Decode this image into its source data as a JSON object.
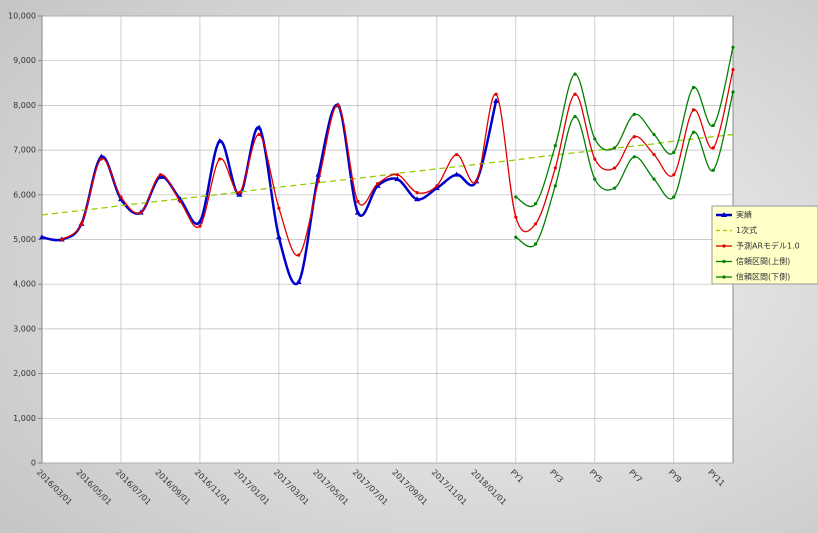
{
  "chart_data": {
    "type": "line",
    "categories": [
      "2016/03/01",
      null,
      "2016/05/01",
      null,
      "2016/07/01",
      null,
      "2016/09/01",
      null,
      "2016/11/01",
      null,
      "2017/01/01",
      null,
      "2017/03/01",
      null,
      "2017/05/01",
      null,
      "2017/07/01",
      null,
      "2017/09/01",
      null,
      "2017/11/01",
      null,
      "2018/01/01",
      null,
      "PY1",
      null,
      "PY3",
      null,
      "PY5",
      null,
      "PY7",
      null,
      "PY9",
      null,
      "PY11",
      null
    ],
    "series": [
      {
        "name": "実績",
        "color": "#0000cc",
        "marker": "triangle",
        "values": [
          5050,
          5000,
          5350,
          6850,
          5900,
          5600,
          6400,
          5900,
          5400,
          7200,
          6000,
          7500,
          5050,
          4050,
          6450,
          8000,
          5600,
          6200,
          6350,
          5900,
          6150,
          6450,
          6300,
          8100,
          null,
          null,
          null,
          null,
          null,
          null,
          null,
          null,
          null,
          null,
          null,
          null
        ]
      },
      {
        "name": "1次式",
        "color": "#99cc00",
        "dashed": true,
        "values": [
          5550,
          5600,
          5650,
          5700,
          5760,
          5810,
          5860,
          5910,
          5960,
          6010,
          6060,
          6120,
          6170,
          6220,
          6270,
          6320,
          6370,
          6420,
          6480,
          6530,
          6580,
          6630,
          6680,
          6730,
          6780,
          6840,
          6890,
          6940,
          6990,
          7040,
          7090,
          7140,
          7200,
          7250,
          7300,
          7350
        ]
      },
      {
        "name": "予測ARモデル1.0",
        "color": "#e00000",
        "marker": "dot",
        "values": [
          null,
          5000,
          5350,
          6800,
          5950,
          5600,
          6450,
          5850,
          5300,
          6800,
          6050,
          7350,
          5700,
          4650,
          6300,
          8000,
          5850,
          6250,
          6450,
          6050,
          6200,
          6900,
          6300,
          8250,
          5500,
          5350,
          6600,
          8250,
          6800,
          6600,
          7300,
          6900,
          6450,
          7900,
          7050,
          8800
        ]
      },
      {
        "name": "信頼区間(上側)",
        "color": "#008000",
        "marker": "dot",
        "values": [
          null,
          null,
          null,
          null,
          null,
          null,
          null,
          null,
          null,
          null,
          null,
          null,
          null,
          null,
          null,
          null,
          null,
          null,
          null,
          null,
          null,
          null,
          null,
          null,
          5950,
          5800,
          7100,
          8700,
          7250,
          7050,
          7800,
          7350,
          6950,
          8400,
          7550,
          9300
        ]
      },
      {
        "name": "信頼区間(下側)",
        "color": "#008000",
        "marker": "dot",
        "values": [
          null,
          null,
          null,
          null,
          null,
          null,
          null,
          null,
          null,
          null,
          null,
          null,
          null,
          null,
          null,
          null,
          null,
          null,
          null,
          null,
          null,
          null,
          null,
          null,
          5050,
          4900,
          6200,
          7750,
          6350,
          6150,
          6850,
          6350,
          5950,
          7400,
          6550,
          8300
        ]
      }
    ],
    "ylim": [
      0,
      10000
    ],
    "yticks": [
      0,
      {
        "value": 1000,
        "label": "1,000"
      },
      {
        "value": 2000,
        "label": "2,000"
      },
      {
        "value": 3000,
        "label": "3,000"
      },
      {
        "value": 4000,
        "label": "4,000"
      },
      {
        "value": 5000,
        "label": "5,000"
      },
      {
        "value": 6000,
        "label": "6,000"
      },
      {
        "value": 7000,
        "label": "7,000"
      },
      {
        "value": 8000,
        "label": "8,000"
      },
      {
        "value": 9000,
        "label": "9,000"
      },
      {
        "value": 10000,
        "label": "10,000"
      }
    ],
    "grid": true,
    "legend": "right"
  }
}
